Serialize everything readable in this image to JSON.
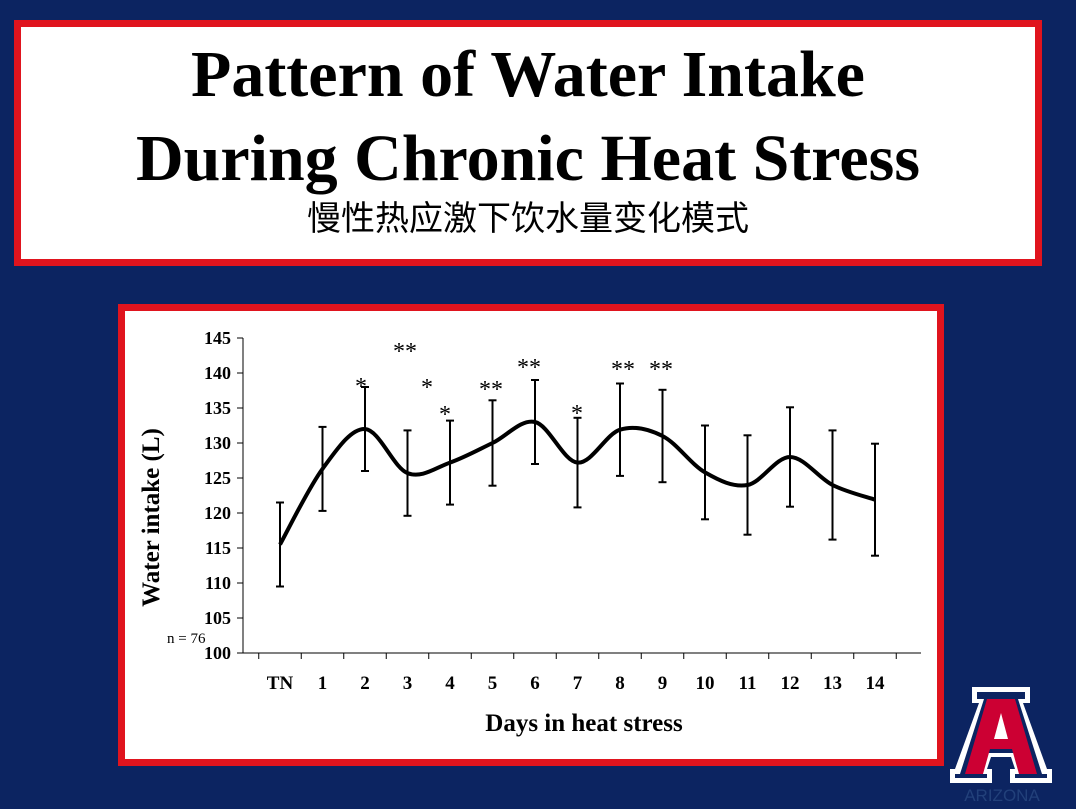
{
  "slide": {
    "title_line1": "Pattern of Water Intake",
    "title_line2": "During Chronic Heat Stress",
    "subtitle": "慢性热应激下饮水量变化模式"
  },
  "logo": {
    "text": "ARIZONA",
    "letter": "A",
    "icon": "university-of-arizona-logo"
  },
  "colors": {
    "background": "#0c2461",
    "frame": "#e0141e",
    "line": "#000000",
    "logo_red": "#cc0033",
    "logo_navy": "#0c2461"
  },
  "chart_data": {
    "type": "line",
    "xlabel": "Days in heat stress",
    "ylabel": "Water intake (L)",
    "ylim": [
      100,
      145
    ],
    "yticks": [
      100,
      105,
      110,
      115,
      120,
      125,
      130,
      135,
      140,
      145
    ],
    "categories": [
      "TN",
      "1",
      "2",
      "3",
      "4",
      "5",
      "6",
      "7",
      "8",
      "9",
      "10",
      "11",
      "12",
      "13",
      "14"
    ],
    "series": [
      {
        "values": [
          115.5,
          126.3,
          132.0,
          125.7,
          127.2,
          130.0,
          133.0,
          127.2,
          131.9,
          131.0,
          125.8,
          124.0,
          128.0,
          124.0,
          121.9
        ],
        "error": [
          6.0,
          6.0,
          6.0,
          6.1,
          6.0,
          6.1,
          6.0,
          6.4,
          6.6,
          6.6,
          6.7,
          7.1,
          7.1,
          7.8,
          8.0
        ]
      }
    ],
    "annotations": [
      {
        "text": "*",
        "after": "1"
      },
      {
        "text": "**",
        "after": "2"
      },
      {
        "text": "*",
        "after": "3a"
      },
      {
        "text": "*",
        "after": "3b"
      },
      {
        "text": "**",
        "after": "4"
      },
      {
        "text": "**",
        "after": "5"
      },
      {
        "text": "*",
        "after": "6"
      },
      {
        "text": "**",
        "after": "7"
      },
      {
        "text": "**",
        "after": "8"
      }
    ],
    "note": "n = 76",
    "grid": false,
    "legend": "none"
  }
}
